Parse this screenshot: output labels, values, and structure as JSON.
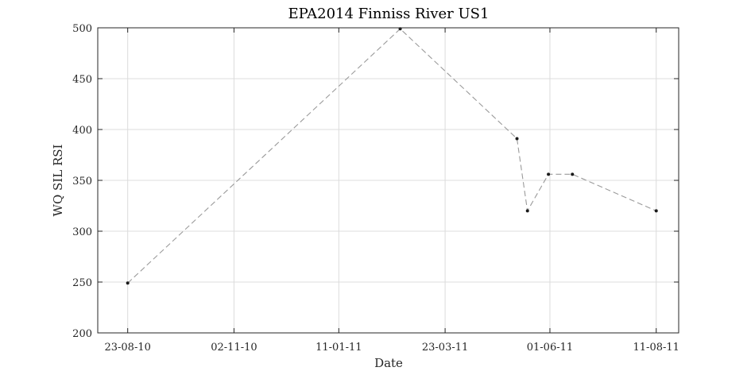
{
  "chart_data": {
    "type": "line",
    "title": "EPA2014 Finniss River US1",
    "xlabel": "Date",
    "ylabel": "WQ SIL RSI",
    "x_type": "date",
    "x_ticks": [
      "2010-08-23",
      "2010-11-02",
      "2011-01-11",
      "2011-03-23",
      "2011-06-01",
      "2011-08-11"
    ],
    "x_tick_labels": [
      "23-08-10",
      "02-11-10",
      "11-01-11",
      "23-03-11",
      "01-06-11",
      "11-08-11"
    ],
    "xlim": [
      "2010-08-03",
      "2011-08-26"
    ],
    "ylim": [
      200,
      500
    ],
    "y_ticks": [
      200,
      250,
      300,
      350,
      400,
      450,
      500
    ],
    "grid": true,
    "line_style": "dashed",
    "colors": {
      "line": "#9a9a9a",
      "marker": "#1a1a1a",
      "grid": "#dcdcdc",
      "axis": "#262626"
    },
    "series": [
      {
        "x": [
          "2010-08-23",
          "2011-02-21",
          "2011-05-10",
          "2011-05-17",
          "2011-05-31",
          "2011-06-16",
          "2011-08-11"
        ],
        "y": [
          249,
          499,
          391,
          320,
          356,
          356,
          320
        ]
      }
    ]
  }
}
